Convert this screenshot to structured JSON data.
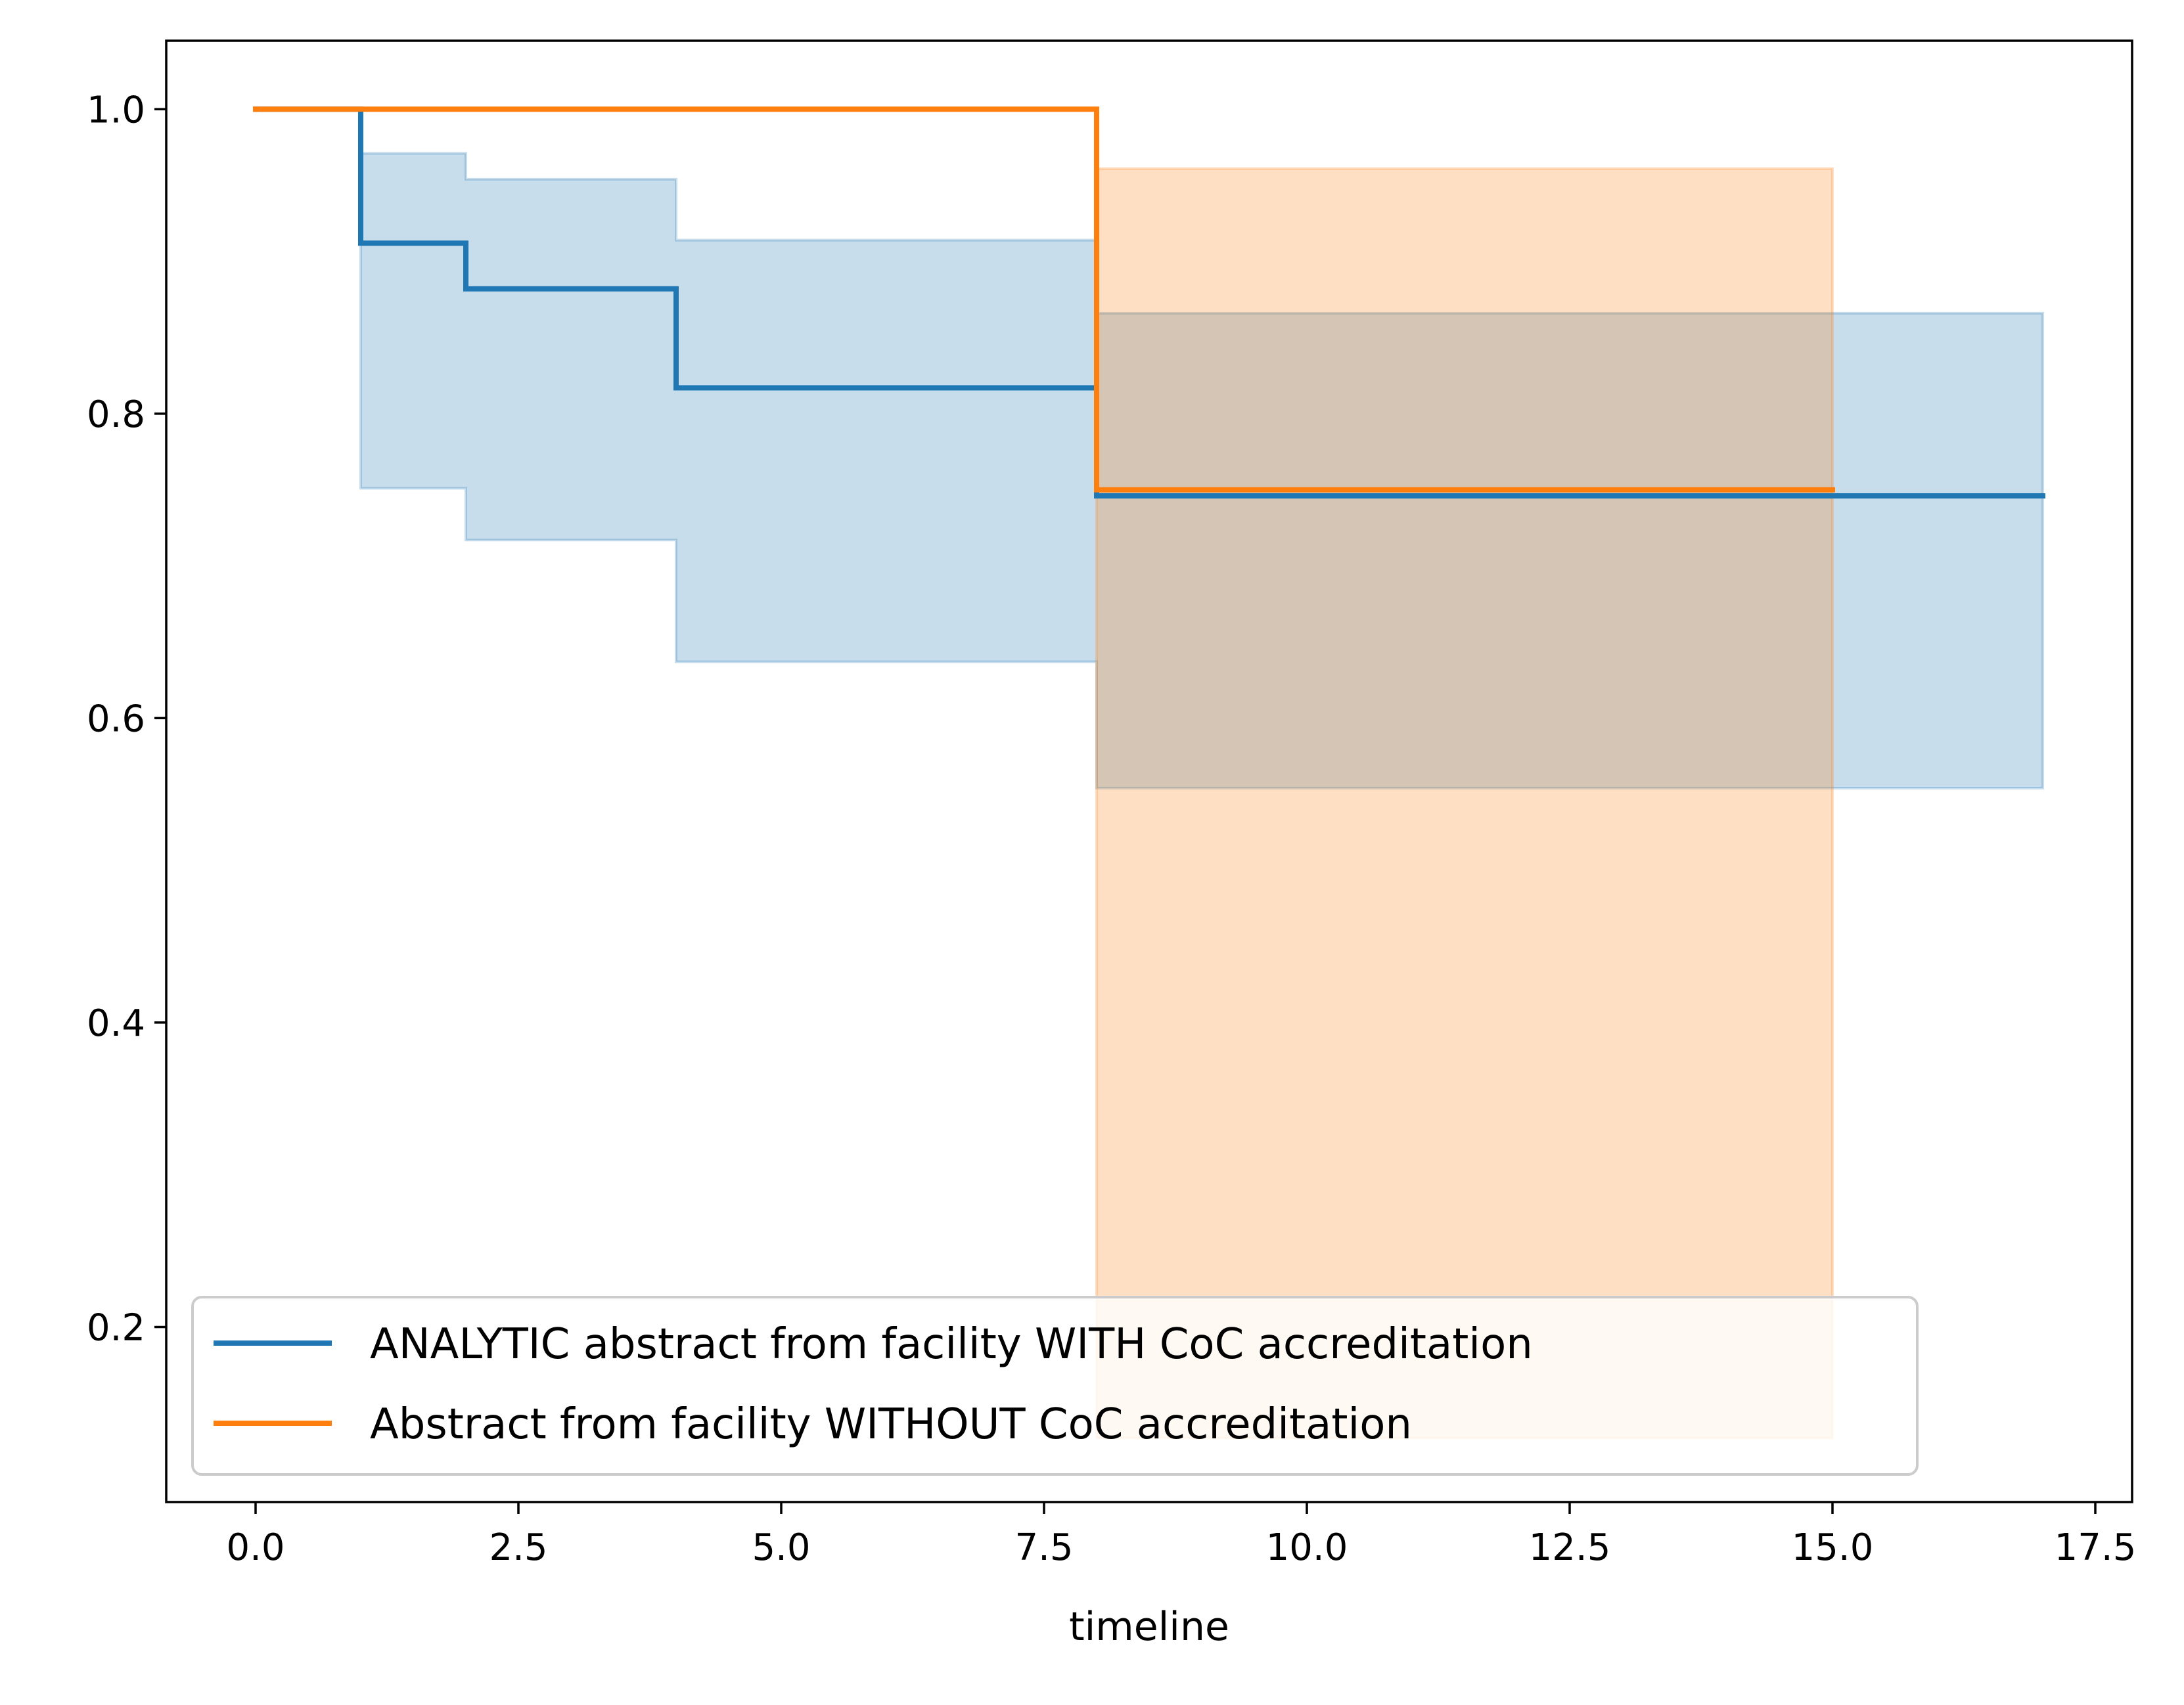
{
  "chart_data": {
    "type": "line",
    "step": "post",
    "xlabel": "timeline",
    "ylabel": "",
    "title": "",
    "xlim": [
      -0.85,
      17.85
    ],
    "ylim": [
      0.085,
      1.045
    ],
    "xticks": [
      0.0,
      2.5,
      5.0,
      7.5,
      10.0,
      12.5,
      15.0,
      17.5
    ],
    "xtick_labels": [
      "0.0",
      "2.5",
      "5.0",
      "7.5",
      "10.0",
      "12.5",
      "15.0",
      "17.5"
    ],
    "yticks": [
      0.2,
      0.4,
      0.6,
      0.8,
      1.0
    ],
    "ytick_labels": [
      "0.2",
      "0.4",
      "0.6",
      "0.8",
      "1.0"
    ],
    "grid": false,
    "legend_position": "lower-left",
    "series": [
      {
        "name": "ANALYTIC abstract from facility WITH CoC accreditation",
        "color": "#1f77b4",
        "x": [
          0,
          1,
          2,
          4,
          8,
          17
        ],
        "y": [
          1.0,
          0.912,
          0.882,
          0.817,
          0.746,
          0.746
        ],
        "ci_lower": [
          1.0,
          0.751,
          0.717,
          0.637,
          0.554,
          0.554
        ],
        "ci_upper": [
          1.0,
          0.971,
          0.954,
          0.914,
          0.866,
          0.866
        ]
      },
      {
        "name": "Abstract from facility WITHOUT CoC accreditation",
        "color": "#ff7f0e",
        "x": [
          0,
          8,
          15
        ],
        "y": [
          1.0,
          0.75,
          0.75
        ],
        "ci_lower": [
          1.0,
          0.127,
          0.127
        ],
        "ci_upper": [
          1.0,
          0.961,
          0.961
        ]
      }
    ]
  }
}
